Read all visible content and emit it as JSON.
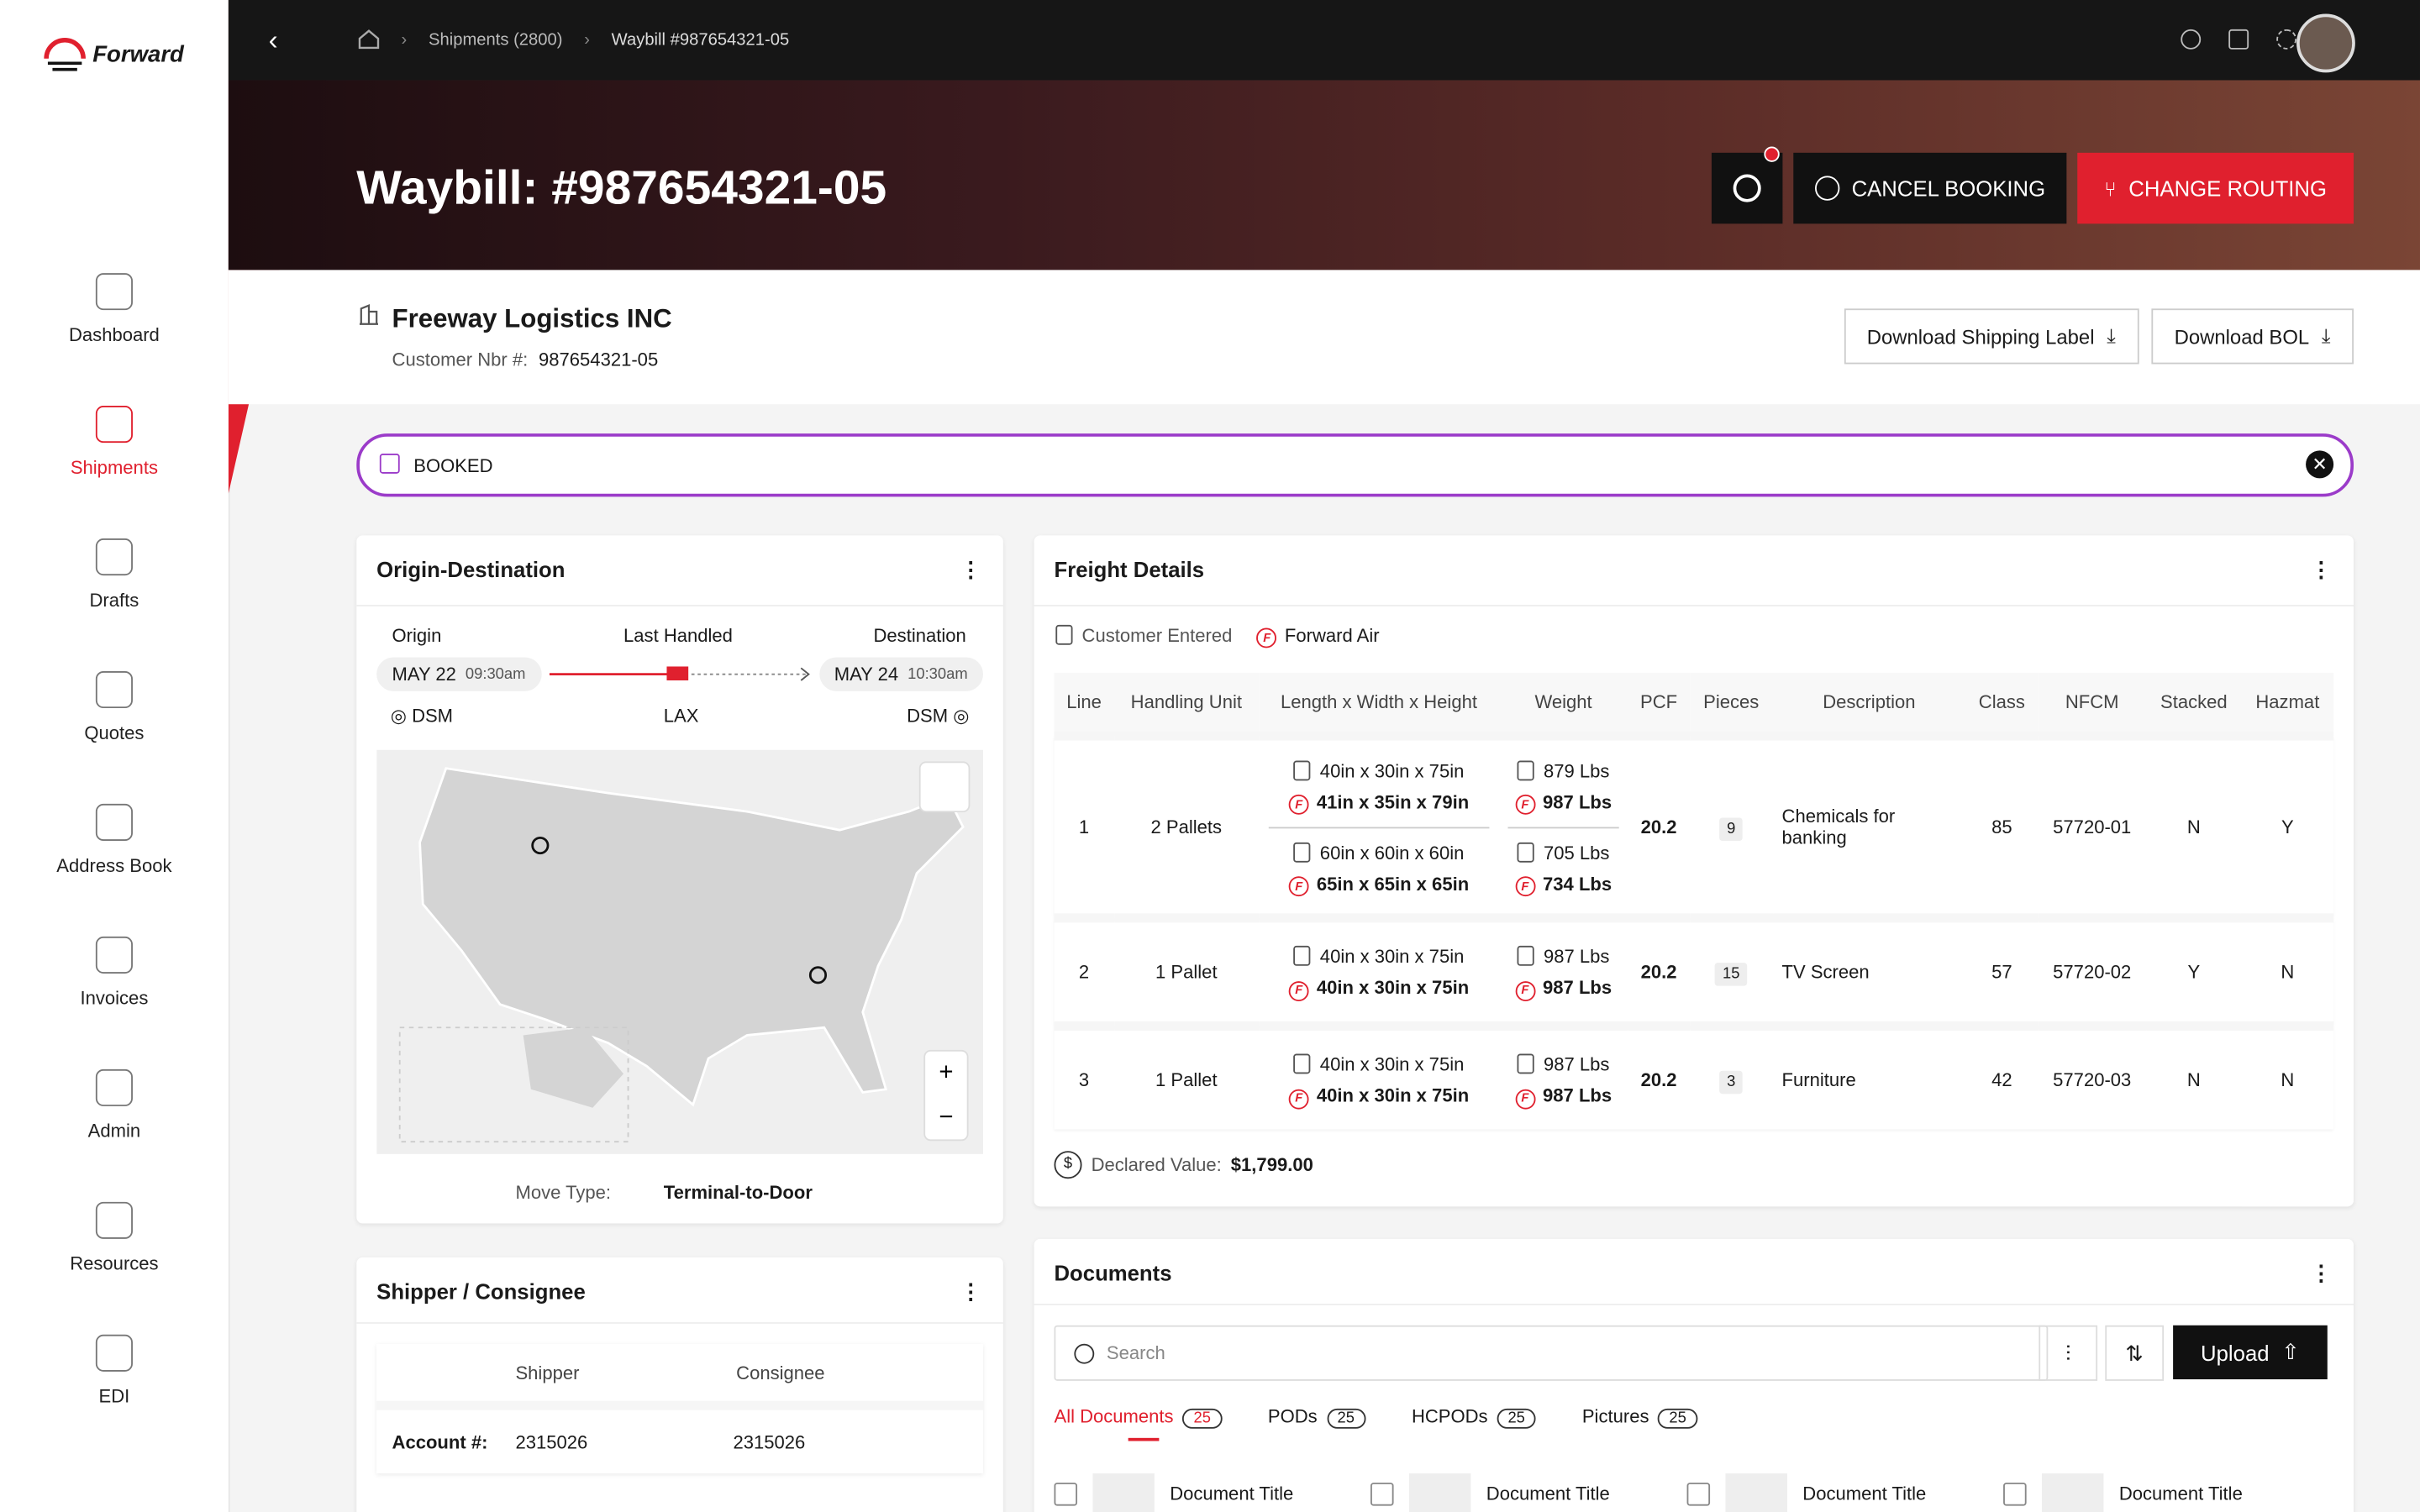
{
  "sidebar": {
    "brand": "Forward",
    "nav": [
      "Dashboard",
      "Shipments",
      "Drafts",
      "Quotes",
      "Address Book",
      "Invoices",
      "Admin",
      "Resources",
      "EDI"
    ]
  },
  "topbar": {
    "breadcrumbs": [
      "Shipments (2800)",
      "Waybill #987654321-05"
    ]
  },
  "header": {
    "title": "Waybill: #987654321-05",
    "cancel_button": "CANCEL BOOKING",
    "routing_button": "CHANGE ROUTING"
  },
  "customer": {
    "name": "Freeway Logistics INC",
    "number_label": "Customer Nbr #:",
    "number": "987654321-05",
    "buttons": [
      "Download Shipping Label",
      "Download BOL"
    ]
  },
  "status": "BOOKED",
  "origin_destination": {
    "title": "Origin-Destination",
    "labels": [
      "Origin",
      "Last Handled",
      "Destination"
    ],
    "origin_date": "MAY 22",
    "origin_time": "09:30am",
    "destination_date": "MAY 24",
    "destination_time": "10:30am",
    "origin_city": "DSM",
    "last_city": "LAX",
    "destination_city": "DSM",
    "move_type_label": "Move Type:",
    "move_type": "Terminal-to-Door"
  },
  "freight": {
    "title": "Freight Details",
    "legend": [
      "Customer Entered",
      "Forward Air"
    ],
    "columns": [
      "Line",
      "Handling Unit",
      "Length x Width x Height",
      "Weight",
      "PCF",
      "Pieces",
      "Description",
      "Class",
      "NFCM",
      "Stacked",
      "Hazmat"
    ],
    "rows": [
      {
        "line": "1",
        "unit": "2 Pallets",
        "items": [
          {
            "dim_entered": "40in x 30in x 75in",
            "dim_forward": "41in x 35in x 79in",
            "wt_entered": "879 Lbs",
            "wt_forward": "987 Lbs"
          },
          {
            "dim_entered": "60in x 60in x 60in",
            "dim_forward": "65in x 65in x 65in",
            "wt_entered": "705 Lbs",
            "wt_forward": "734 Lbs"
          }
        ],
        "pcf": "20.2",
        "pieces": "9",
        "description": "Chemicals for banking",
        "class": "85",
        "nfcm": "57720-01",
        "stacked": "N",
        "hazmat": "Y"
      },
      {
        "line": "2",
        "unit": "1 Pallet",
        "items": [
          {
            "dim_entered": "40in x 30in x 75in",
            "dim_forward": "40in x 30in x 75in",
            "wt_entered": "987 Lbs",
            "wt_forward": "987 Lbs"
          }
        ],
        "pcf": "20.2",
        "pieces": "15",
        "description": "TV Screen",
        "class": "57",
        "nfcm": "57720-02",
        "stacked": "Y",
        "hazmat": "N"
      },
      {
        "line": "3",
        "unit": "1 Pallet",
        "items": [
          {
            "dim_entered": "40in x 30in x 75in",
            "dim_forward": "40in x 30in x 75in",
            "wt_entered": "987 Lbs",
            "wt_forward": "987 Lbs"
          }
        ],
        "pcf": "20.2",
        "pieces": "3",
        "description": "Furniture",
        "class": "42",
        "nfcm": "57720-03",
        "stacked": "N",
        "hazmat": "N"
      }
    ],
    "declared_label": "Declared Value:",
    "declared_value": "$1,799.00"
  },
  "shipper_consignee": {
    "title": "Shipper / Consignee",
    "columns": [
      "Shipper",
      "Consignee"
    ],
    "rows": [
      [
        "Account #:",
        "2315026",
        "2315026"
      ]
    ]
  },
  "documents": {
    "title": "Documents",
    "search": "Search",
    "upload": "Upload",
    "tabs": [
      {
        "label": "All Documents",
        "count": "25"
      },
      {
        "label": "PODs",
        "count": "25"
      },
      {
        "label": "HCPODs",
        "count": "25"
      },
      {
        "label": "Pictures",
        "count": "25"
      }
    ],
    "cards": [
      "Document Title",
      "Document Title",
      "Document Title",
      "Document Title"
    ]
  }
}
